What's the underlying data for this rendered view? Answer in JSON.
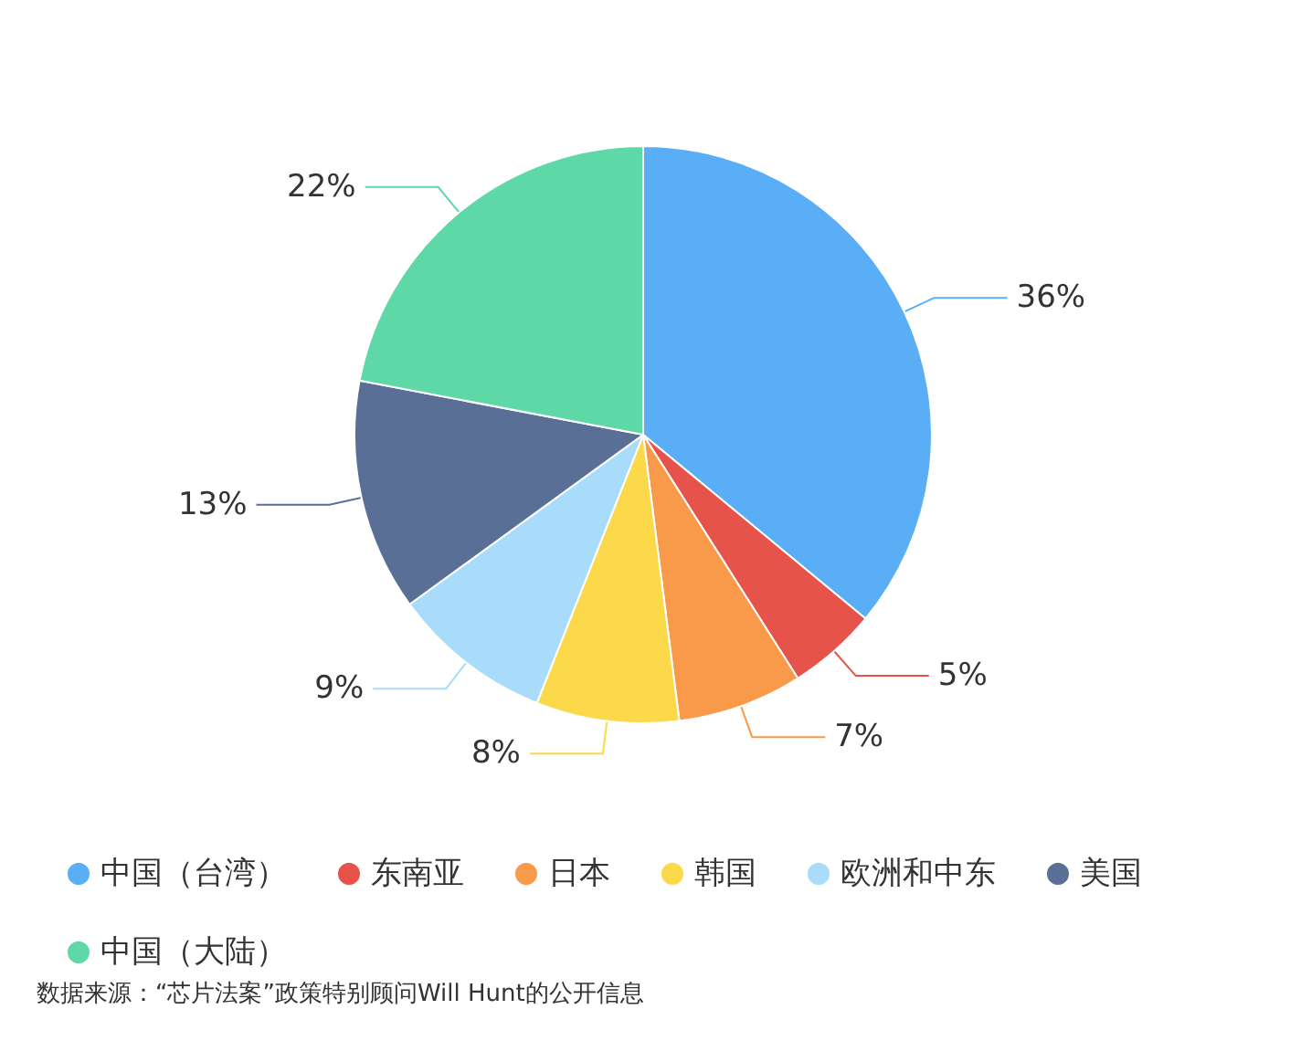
{
  "chart_data": {
    "type": "pie",
    "categories": [
      "中国（台湾）",
      "东南亚",
      "日本",
      "韩国",
      "欧洲和中东",
      "美国",
      "中国（大陆）"
    ],
    "values": [
      36,
      5,
      7,
      8,
      9,
      13,
      22
    ],
    "colors": [
      "#5aaef5",
      "#e5534b",
      "#f99a4a",
      "#fcd94a",
      "#a8dcfa",
      "#5a6f96",
      "#5fd8a8"
    ],
    "value_labels": [
      "36%",
      "5%",
      "7%",
      "8%",
      "9%",
      "13%",
      "22%"
    ],
    "legend": "bottom left",
    "annotations": [
      "数据来源：“芯片法案”政策特别顾问Will Hunt的公开信息"
    ]
  }
}
